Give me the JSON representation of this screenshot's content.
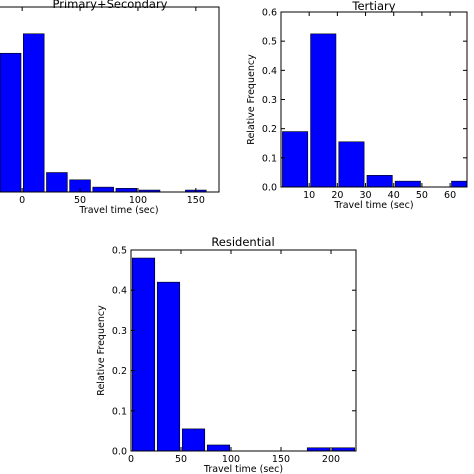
{
  "chart_data": [
    {
      "type": "bar",
      "title": "Primary+Secondary",
      "xlabel": "Travel time (sec)",
      "ylabel": "",
      "bin_width": 20,
      "x_bin_starts": [
        -20,
        0,
        20,
        40,
        60,
        80,
        100,
        120,
        140,
        160
      ],
      "values": [
        0.57,
        0.65,
        0.08,
        0.05,
        0.02,
        0.015,
        0.008,
        0.0,
        0.008,
        0.0
      ],
      "xlim": [
        -20,
        170
      ],
      "ylim": [
        0,
        0.76
      ],
      "xticks": [
        "0",
        "50",
        "100",
        "150"
      ],
      "yticks": []
    },
    {
      "type": "bar",
      "title": "Tertiary",
      "xlabel": "Travel time (sec)",
      "ylabel": "Relative Frequency",
      "bin_width": 10,
      "x_bin_starts": [
        0,
        10,
        20,
        30,
        40,
        50,
        60
      ],
      "values": [
        0.19,
        0.525,
        0.155,
        0.04,
        0.02,
        0.0,
        0.02
      ],
      "xlim": [
        0,
        66
      ],
      "ylim": [
        0,
        0.6
      ],
      "xticks": [
        "10",
        "20",
        "30",
        "40",
        "50",
        "60"
      ],
      "yticks": [
        "0.0",
        "0.1",
        "0.2",
        "0.3",
        "0.4",
        "0.5",
        "0.6"
      ]
    },
    {
      "type": "bar",
      "title": "Residential",
      "xlabel": "Travel time (sec)",
      "ylabel": "Relative Frequency",
      "bin_width": 25,
      "x_bin_starts": [
        0,
        25,
        50,
        75,
        100,
        125,
        150,
        175,
        200
      ],
      "values": [
        0.48,
        0.42,
        0.055,
        0.015,
        0.0,
        0.0,
        0.0,
        0.008,
        0.008
      ],
      "xlim": [
        0,
        225
      ],
      "ylim": [
        0,
        0.5
      ],
      "xticks": [
        "0",
        "50",
        "100",
        "150",
        "200"
      ],
      "yticks": [
        "0.0",
        "0.1",
        "0.2",
        "0.3",
        "0.4",
        "0.5"
      ]
    }
  ]
}
